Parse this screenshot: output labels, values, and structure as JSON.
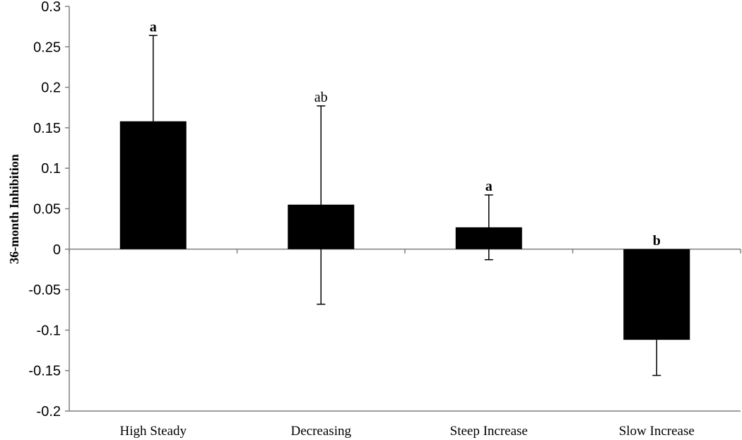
{
  "chart_data": {
    "type": "bar",
    "title": "",
    "xlabel": "",
    "ylabel": "36-month Inhibition",
    "ylim": [
      -0.2,
      0.3
    ],
    "yticks": [
      0.3,
      0.25,
      0.2,
      0.15,
      0.1,
      0.05,
      0,
      -0.05,
      -0.1,
      -0.15,
      -0.2
    ],
    "ytick_labels": [
      "0.3",
      "0.25",
      "0.2",
      "0.15",
      "0.1",
      "0.05",
      "0",
      "-0.05",
      "-0.1",
      "-0.15",
      "-0.2"
    ],
    "grid": false,
    "legend": "none",
    "categories": [
      "High Steady",
      "Decreasing",
      "Steep Increase",
      "Slow Increase"
    ],
    "values": [
      0.158,
      0.055,
      0.027,
      -0.112
    ],
    "error_upper": [
      0.264,
      0.177,
      0.067,
      -0.112
    ],
    "error_lower": [
      0.158,
      -0.068,
      -0.013,
      -0.156
    ],
    "significance_labels": [
      "a",
      "ab",
      "a",
      "b"
    ],
    "significance_bold": [
      true,
      false,
      true,
      true
    ],
    "bar_color": "#000000",
    "axis_color": "#808080"
  }
}
